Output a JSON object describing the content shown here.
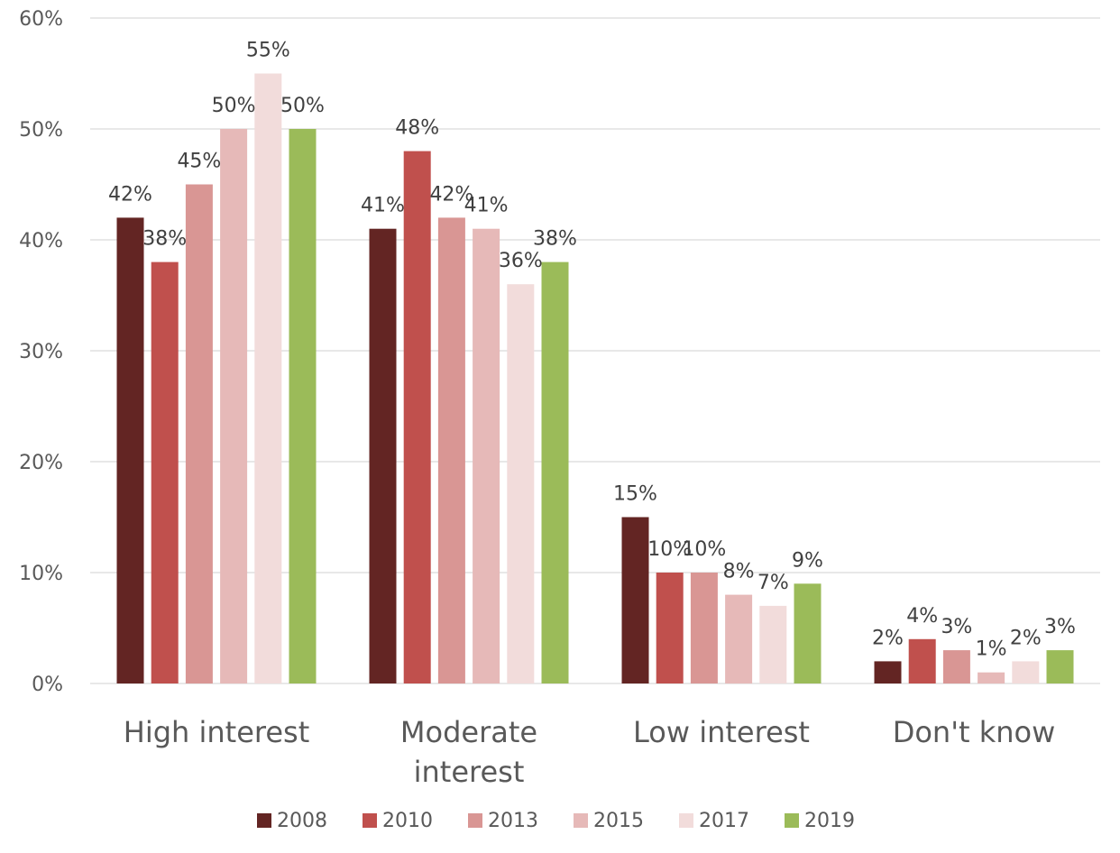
{
  "chart_data": {
    "type": "bar",
    "title": "",
    "xlabel": "",
    "ylabel": "",
    "categories": [
      [
        "High interest"
      ],
      [
        "Moderate",
        "interest"
      ],
      [
        "Low interest"
      ],
      [
        "Don't know"
      ]
    ],
    "series": [
      {
        "name": "2008",
        "color": "#632523",
        "values": [
          42,
          41,
          15,
          2
        ]
      },
      {
        "name": "2010",
        "color": "#c0504d",
        "values": [
          38,
          48,
          10,
          4
        ]
      },
      {
        "name": "2013",
        "color": "#d99694",
        "values": [
          45,
          42,
          10,
          3
        ]
      },
      {
        "name": "2015",
        "color": "#e6b9b8",
        "values": [
          50,
          41,
          8,
          1
        ]
      },
      {
        "name": "2017",
        "color": "#f2dcdb",
        "values": [
          55,
          36,
          7,
          2
        ]
      },
      {
        "name": "2019",
        "color": "#9bbb59",
        "values": [
          50,
          38,
          9,
          3
        ]
      }
    ],
    "ylim": [
      0,
      60
    ],
    "yticks": [
      "0%",
      "10%",
      "20%",
      "30%",
      "40%",
      "50%",
      "60%"
    ],
    "value_suffix": "%",
    "grid": true,
    "legend": "bottom"
  }
}
